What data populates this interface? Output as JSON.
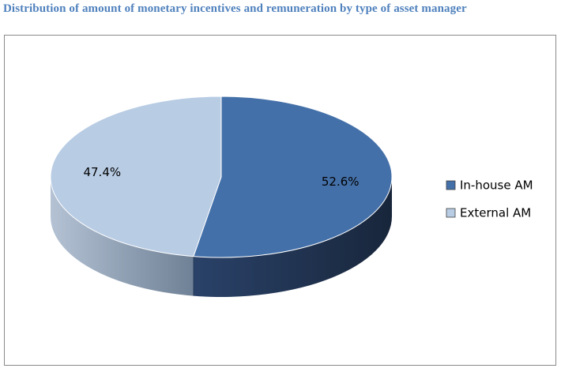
{
  "chart_data": {
    "type": "pie",
    "title": "Distribution of amount of monetary incentives and remuneration by type of asset manager",
    "categories": [
      "In-house AM",
      "External AM"
    ],
    "values": [
      52.6,
      47.4
    ],
    "value_labels": [
      "52.6%",
      "47.4%"
    ],
    "colors": {
      "In-house AM": "#4470a9",
      "External AM": "#b8cce4"
    },
    "title_color": "#4f81bd",
    "style": "3d-pie",
    "legend": "right"
  },
  "legend": {
    "items": [
      {
        "label": "In-house AM",
        "color": "#4470a9"
      },
      {
        "label": "External AM",
        "color": "#b8cce4"
      }
    ]
  }
}
